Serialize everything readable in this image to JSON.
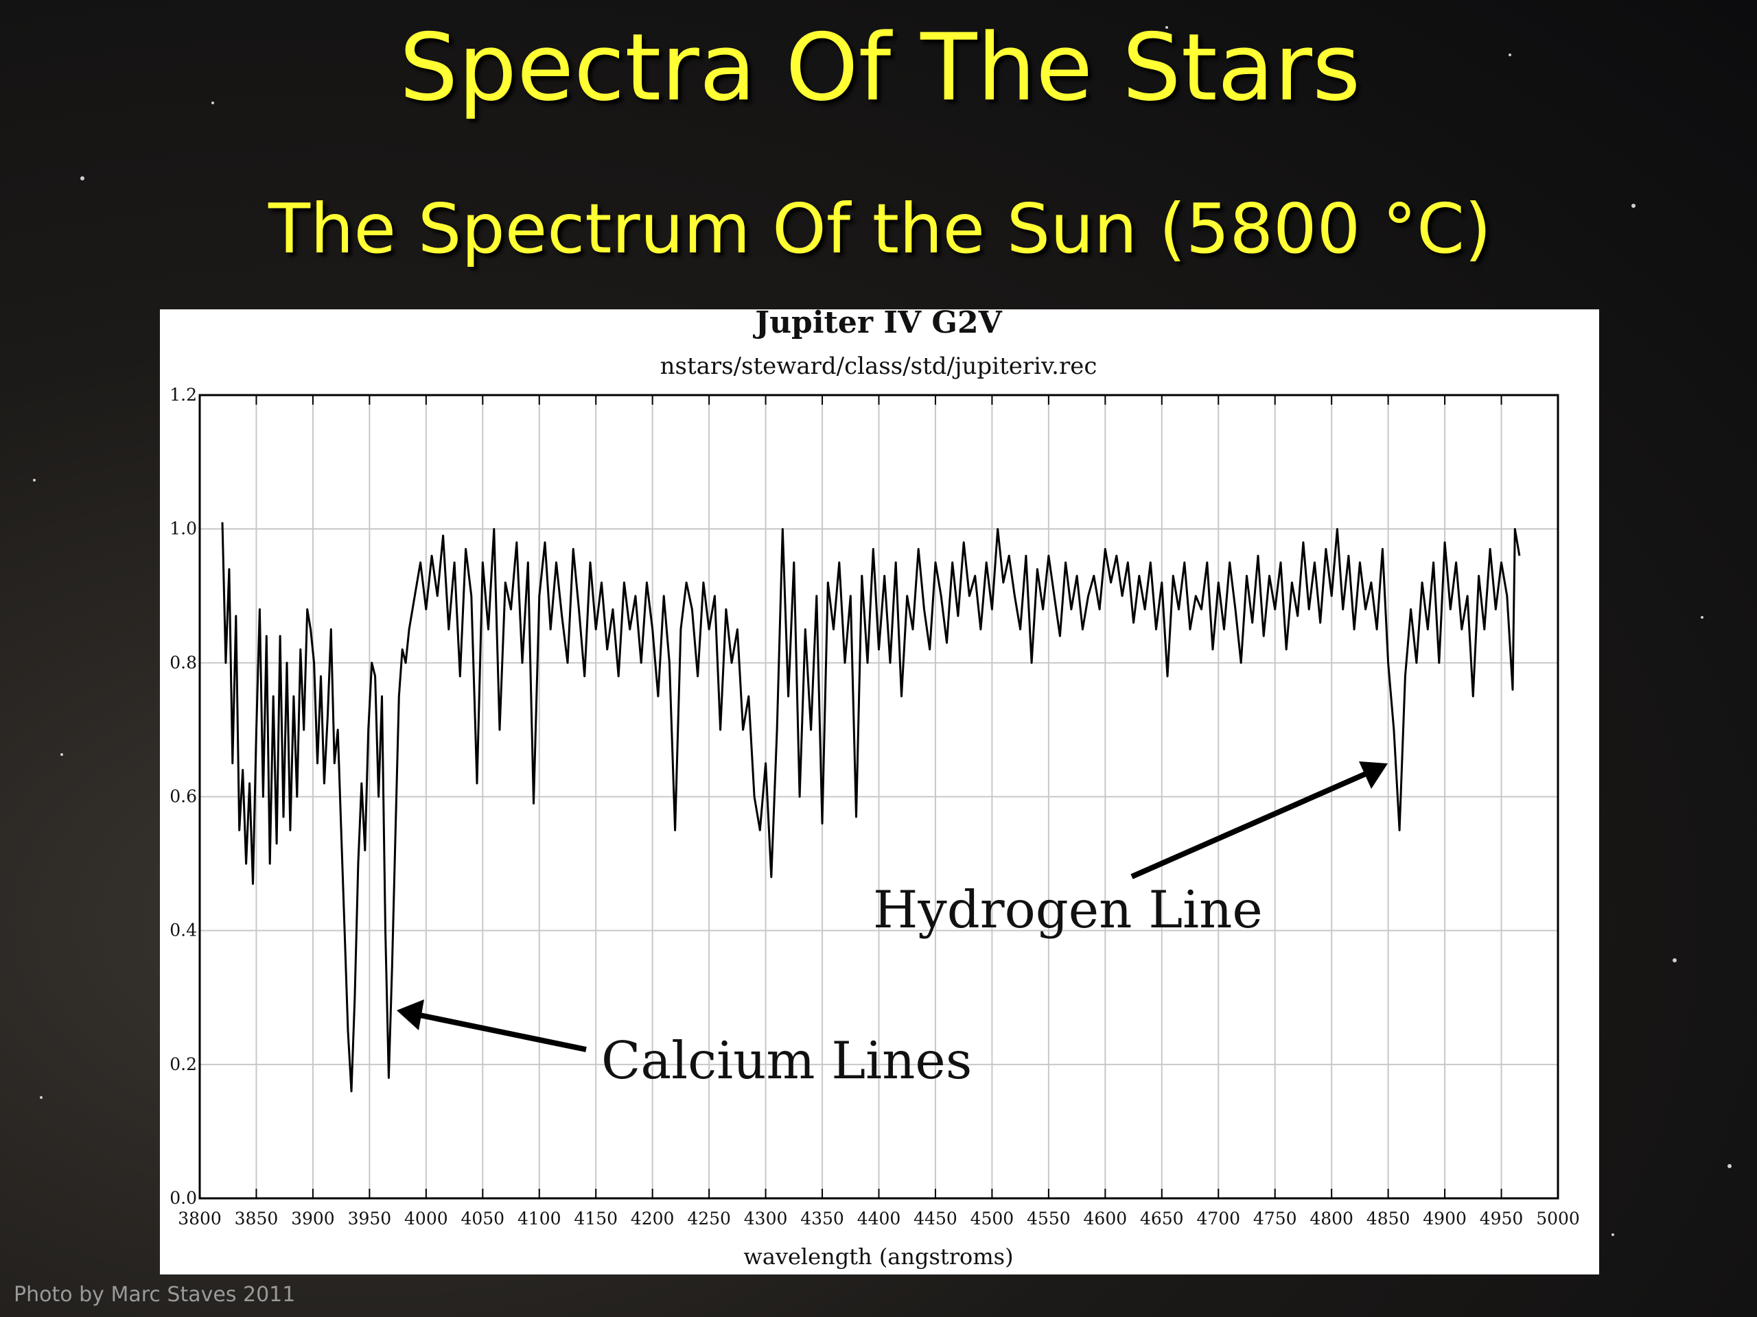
{
  "slide": {
    "title": "Spectra Of The Stars",
    "subtitle": "The Spectrum Of the Sun (5800 °C)",
    "credit": "Photo by Marc Staves 2011"
  },
  "chart_data": {
    "type": "line",
    "title": "Jupiter IV G2V",
    "subtitle": "nstars/steward/class/std/jupiteriv.rec",
    "x_label": "wavelength (angstroms)",
    "annotations": [
      "Hydrogen Line",
      "Calcium Lines"
    ],
    "color": "#000000",
    "grid": true,
    "xlim": [
      3800,
      5000
    ],
    "xticks": [
      3800,
      3850,
      3900,
      3950,
      4000,
      4050,
      4100,
      4150,
      4200,
      4250,
      4300,
      4350,
      4400,
      4450,
      4500,
      4550,
      4600,
      4650,
      4700,
      4750,
      4800,
      4850,
      4900,
      4950,
      5000
    ],
    "ylim": [
      0,
      1.2
    ],
    "yticks": [
      {
        "value": 0,
        "label": "0.0"
      },
      0.2,
      0.4,
      0.6,
      0.8,
      {
        "value": 1,
        "label": "1.0"
      },
      1.2
    ],
    "x": [
      3820,
      3823,
      3826,
      3829,
      3832,
      3835,
      3838,
      3841,
      3844,
      3847,
      3850,
      3853,
      3856,
      3859,
      3862,
      3865,
      3868,
      3871,
      3874,
      3877,
      3880,
      3883,
      3886,
      3889,
      3892,
      3895,
      3898,
      3901,
      3904,
      3907,
      3910,
      3913,
      3916,
      3919,
      3922,
      3925,
      3928,
      3931,
      3934,
      3937,
      3940,
      3943,
      3946,
      3949,
      3952,
      3955,
      3958,
      3961,
      3964,
      3967,
      3970,
      3973,
      3976,
      3979,
      3982,
      3985,
      3990,
      3995,
      4000,
      4005,
      4010,
      4015,
      4020,
      4025,
      4030,
      4035,
      4040,
      4045,
      4050,
      4055,
      4060,
      4065,
      4070,
      4075,
      4080,
      4085,
      4090,
      4095,
      4100,
      4105,
      4110,
      4115,
      4120,
      4125,
      4130,
      4135,
      4140,
      4145,
      4150,
      4155,
      4160,
      4165,
      4170,
      4175,
      4180,
      4185,
      4190,
      4195,
      4200,
      4205,
      4210,
      4215,
      4220,
      4225,
      4230,
      4235,
      4240,
      4245,
      4250,
      4255,
      4260,
      4265,
      4270,
      4275,
      4280,
      4285,
      4290,
      4295,
      4300,
      4305,
      4310,
      4315,
      4320,
      4325,
      4330,
      4335,
      4340,
      4345,
      4350,
      4355,
      4360,
      4365,
      4370,
      4375,
      4380,
      4385,
      4390,
      4395,
      4400,
      4405,
      4410,
      4415,
      4420,
      4425,
      4430,
      4435,
      4440,
      4445,
      4450,
      4455,
      4460,
      4465,
      4470,
      4475,
      4480,
      4485,
      4490,
      4495,
      4500,
      4505,
      4510,
      4515,
      4520,
      4525,
      4530,
      4535,
      4540,
      4545,
      4550,
      4555,
      4560,
      4565,
      4570,
      4575,
      4580,
      4585,
      4590,
      4595,
      4600,
      4605,
      4610,
      4615,
      4620,
      4625,
      4630,
      4635,
      4640,
      4645,
      4650,
      4655,
      4660,
      4665,
      4670,
      4675,
      4680,
      4685,
      4690,
      4695,
      4700,
      4705,
      4710,
      4715,
      4720,
      4725,
      4730,
      4735,
      4740,
      4745,
      4750,
      4755,
      4760,
      4765,
      4770,
      4775,
      4780,
      4785,
      4790,
      4795,
      4800,
      4805,
      4810,
      4815,
      4820,
      4825,
      4830,
      4835,
      4840,
      4845,
      4850,
      4855,
      4860,
      4865,
      4870,
      4875,
      4880,
      4885,
      4890,
      4895,
      4900,
      4905,
      4910,
      4915,
      4920,
      4925,
      4930,
      4935,
      4940,
      4945,
      4950,
      4955,
      4960,
      4962,
      4966
    ],
    "values": [
      1.01,
      0.8,
      0.94,
      0.65,
      0.87,
      0.55,
      0.64,
      0.5,
      0.62,
      0.47,
      0.7,
      0.88,
      0.6,
      0.84,
      0.5,
      0.75,
      0.53,
      0.84,
      0.57,
      0.8,
      0.55,
      0.75,
      0.6,
      0.82,
      0.7,
      0.88,
      0.85,
      0.8,
      0.65,
      0.78,
      0.62,
      0.72,
      0.85,
      0.65,
      0.7,
      0.55,
      0.4,
      0.25,
      0.16,
      0.3,
      0.5,
      0.62,
      0.52,
      0.7,
      0.8,
      0.78,
      0.6,
      0.75,
      0.4,
      0.18,
      0.35,
      0.55,
      0.75,
      0.82,
      0.8,
      0.85,
      0.9,
      0.95,
      0.88,
      0.96,
      0.9,
      0.99,
      0.85,
      0.95,
      0.78,
      0.97,
      0.9,
      0.62,
      0.95,
      0.85,
      1.0,
      0.7,
      0.92,
      0.88,
      0.98,
      0.8,
      0.95,
      0.59,
      0.9,
      0.98,
      0.85,
      0.95,
      0.87,
      0.8,
      0.97,
      0.88,
      0.78,
      0.95,
      0.85,
      0.92,
      0.82,
      0.88,
      0.78,
      0.92,
      0.85,
      0.9,
      0.8,
      0.92,
      0.85,
      0.75,
      0.9,
      0.8,
      0.55,
      0.85,
      0.92,
      0.88,
      0.78,
      0.92,
      0.85,
      0.9,
      0.7,
      0.88,
      0.8,
      0.85,
      0.7,
      0.75,
      0.6,
      0.55,
      0.65,
      0.48,
      0.7,
      1.0,
      0.75,
      0.95,
      0.6,
      0.85,
      0.7,
      0.9,
      0.56,
      0.92,
      0.85,
      0.95,
      0.8,
      0.9,
      0.57,
      0.93,
      0.8,
      0.97,
      0.82,
      0.93,
      0.8,
      0.95,
      0.75,
      0.9,
      0.85,
      0.97,
      0.88,
      0.82,
      0.95,
      0.9,
      0.83,
      0.95,
      0.87,
      0.98,
      0.9,
      0.93,
      0.85,
      0.95,
      0.88,
      1.0,
      0.92,
      0.96,
      0.9,
      0.85,
      0.96,
      0.8,
      0.94,
      0.88,
      0.96,
      0.9,
      0.84,
      0.95,
      0.88,
      0.93,
      0.85,
      0.9,
      0.93,
      0.88,
      0.97,
      0.92,
      0.96,
      0.9,
      0.95,
      0.86,
      0.93,
      0.88,
      0.95,
      0.85,
      0.92,
      0.78,
      0.93,
      0.88,
      0.95,
      0.85,
      0.9,
      0.88,
      0.95,
      0.82,
      0.92,
      0.85,
      0.95,
      0.88,
      0.8,
      0.93,
      0.86,
      0.96,
      0.84,
      0.93,
      0.88,
      0.95,
      0.82,
      0.92,
      0.87,
      0.98,
      0.88,
      0.95,
      0.86,
      0.97,
      0.9,
      1.0,
      0.88,
      0.96,
      0.85,
      0.95,
      0.88,
      0.92,
      0.85,
      0.97,
      0.8,
      0.7,
      0.55,
      0.78,
      0.88,
      0.8,
      0.92,
      0.85,
      0.95,
      0.8,
      0.98,
      0.88,
      0.95,
      0.85,
      0.9,
      0.75,
      0.93,
      0.85,
      0.97,
      0.88,
      0.95,
      0.9,
      0.76,
      1.0,
      0.96
    ]
  }
}
